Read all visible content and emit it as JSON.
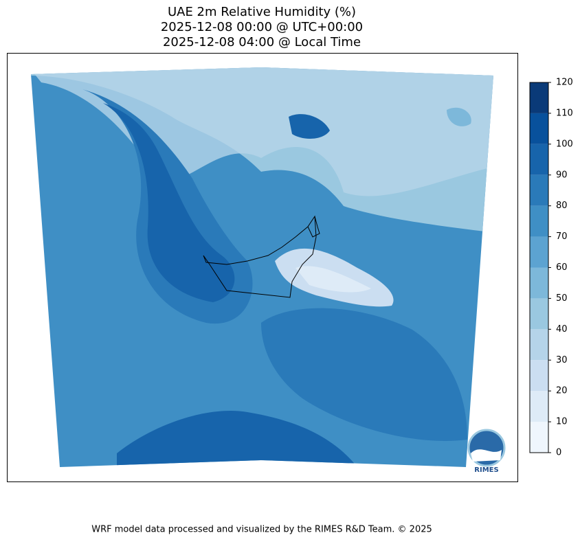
{
  "title": [
    "UAE 2m Relative Humidity (%)",
    "2025-12-08 00:00 @ UTC+00:00",
    "2025-12-08 04:00 @ Local Time"
  ],
  "colorbar": {
    "lim": [
      0,
      120
    ],
    "ticks": [
      0,
      10,
      20,
      30,
      40,
      50,
      60,
      70,
      80,
      90,
      100,
      110,
      120
    ],
    "colors": [
      "#eff6fd",
      "#deebf7",
      "#cbdef1",
      "#b5d4e9",
      "#9ac8e0",
      "#7db8da",
      "#5ca3d1",
      "#3f8fc5",
      "#2a7ab9",
      "#1764ab",
      "#08519c",
      "#0a3a78"
    ]
  },
  "logo": "RIMES",
  "footer": "WRF model data processed and visualized by the RIMES R&D Team. © 2025"
}
